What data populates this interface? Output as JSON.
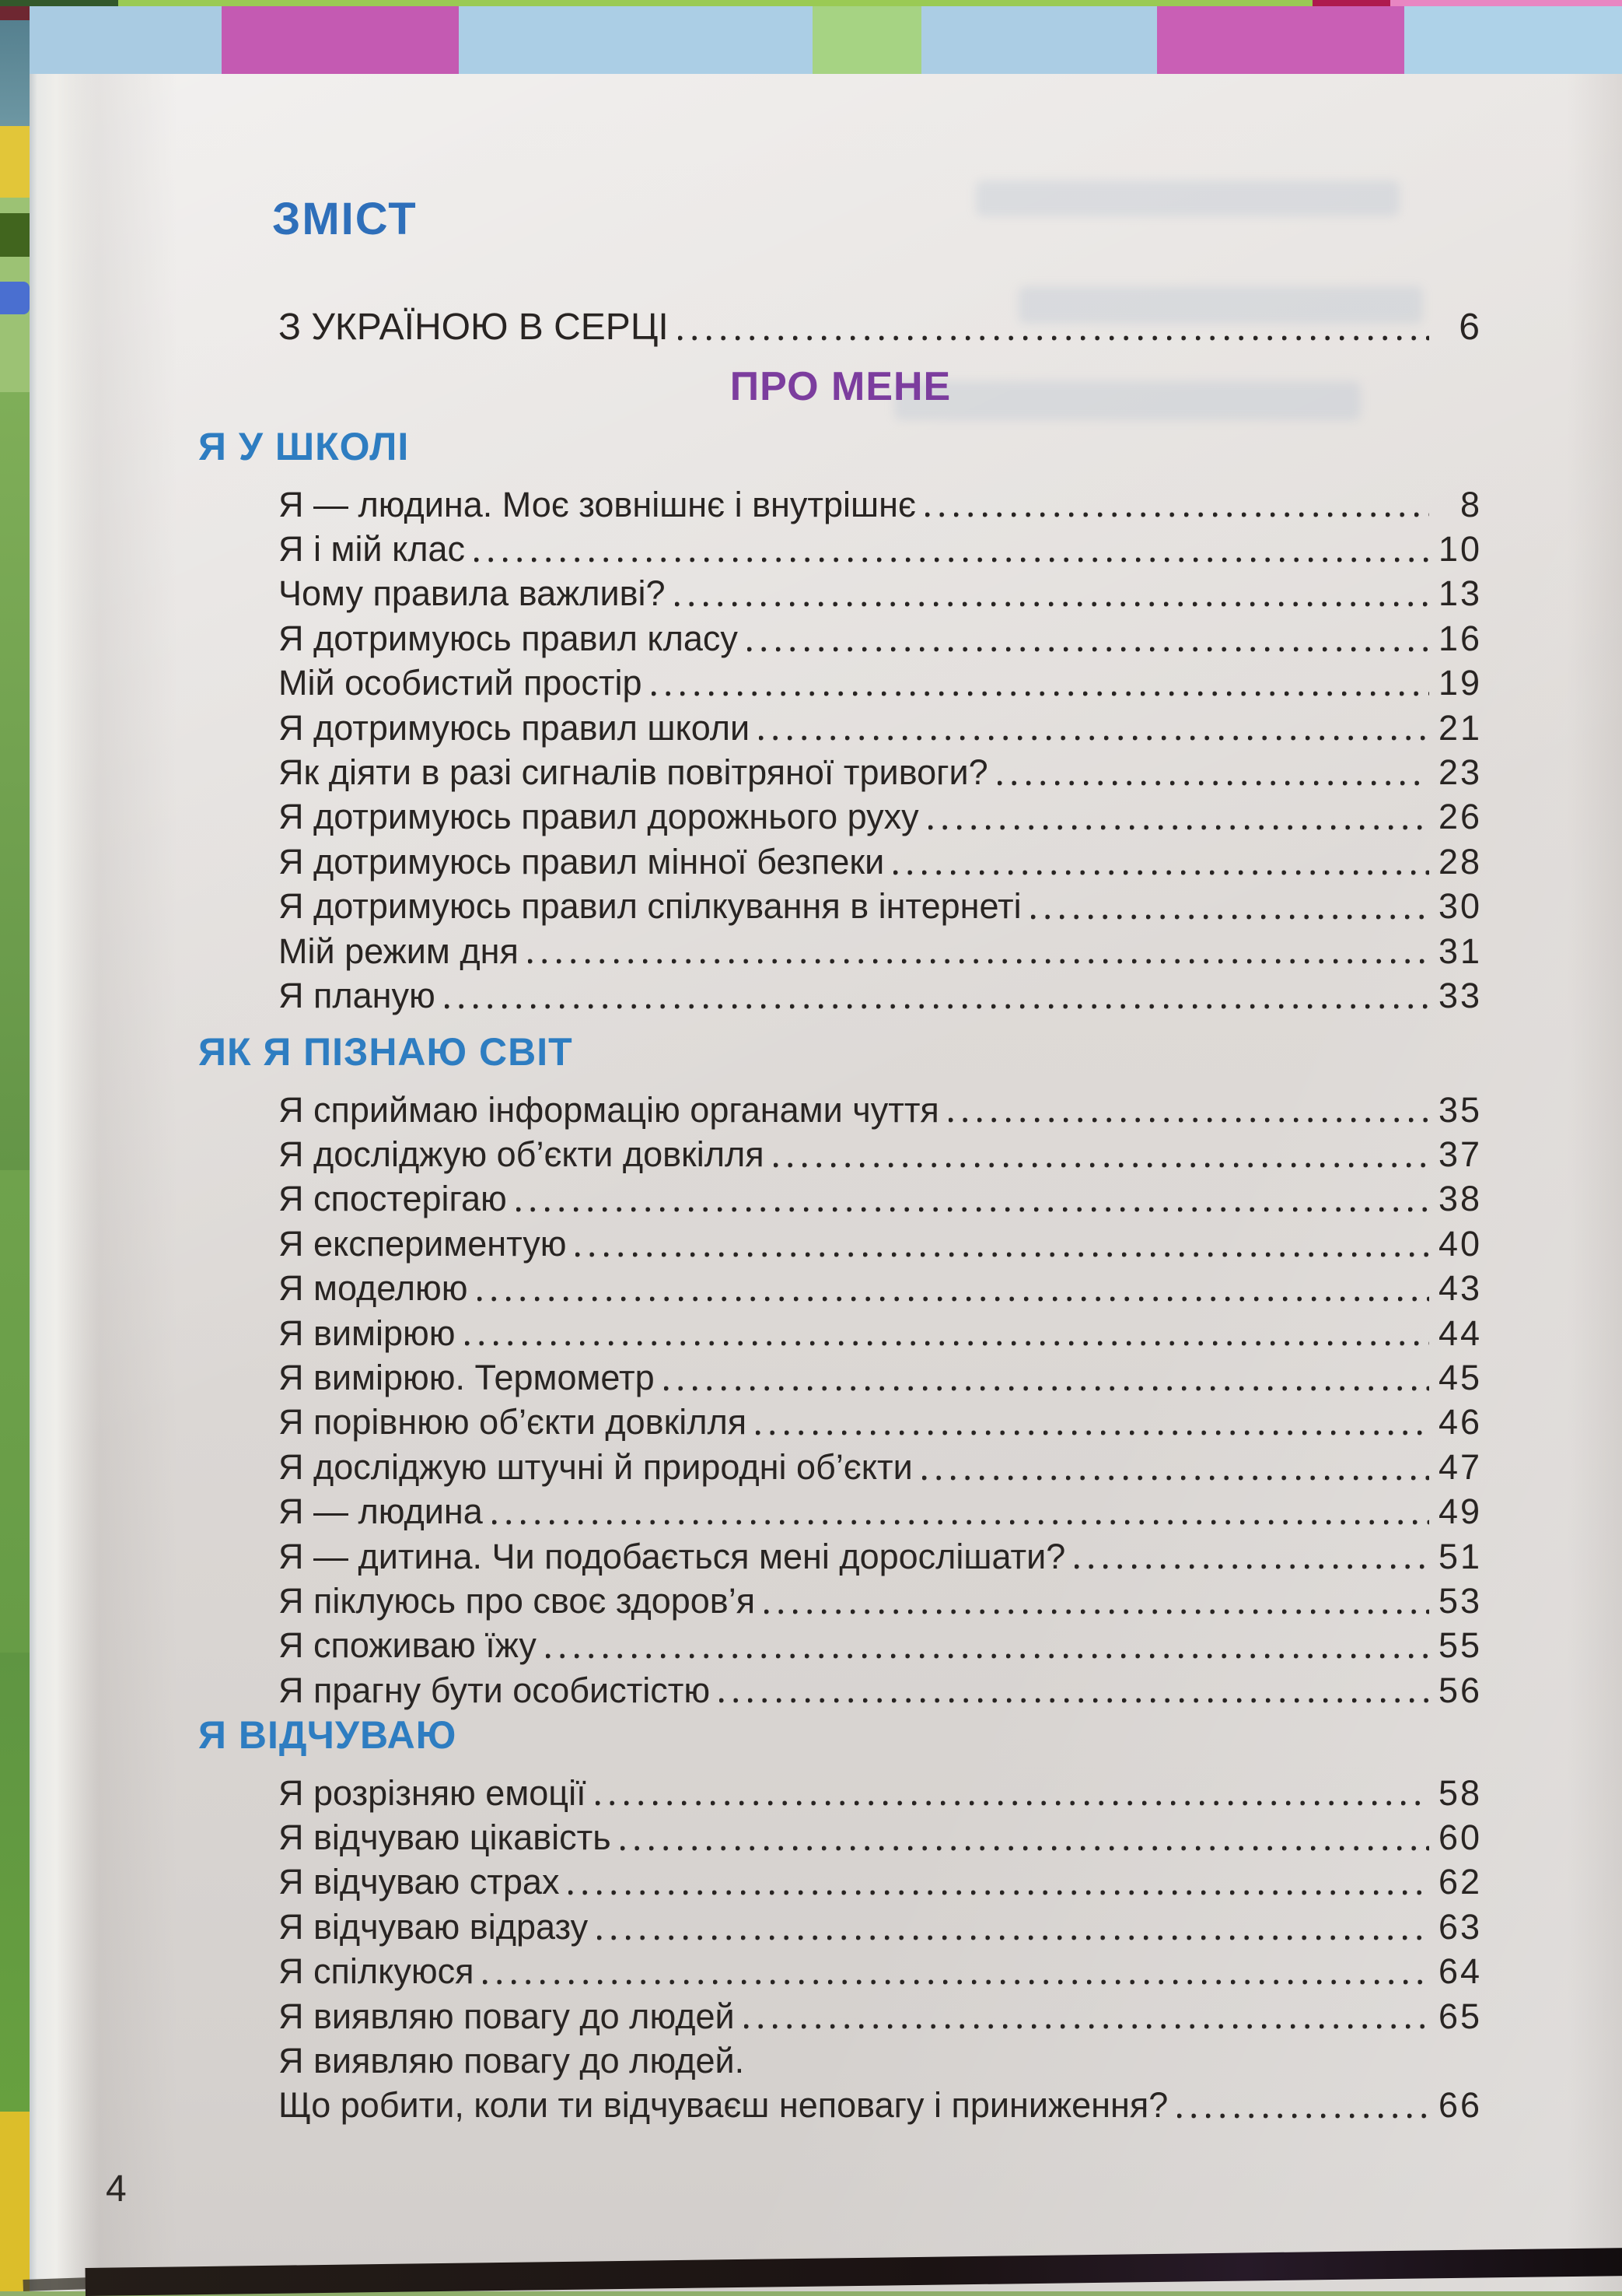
{
  "colors": {
    "title-blue": "#2e6fba",
    "section-blue": "#2e7dc1",
    "part-purple": "#7c3d9e",
    "ink": "#282422"
  },
  "toc": {
    "title": "ЗМІСТ",
    "top_entry": {
      "label": "З УКРАЇНОЮ В СЕРЦІ",
      "page": "6"
    },
    "part_heading": "ПРО МЕНЕ",
    "footer_page_number": "4",
    "sections": [
      {
        "heading": "Я У ШКОЛІ",
        "entries": [
          {
            "label": "Я — людина. Моє зовнішнє і внутрішнє",
            "page": "8"
          },
          {
            "label": "Я і мій клас",
            "page": "10"
          },
          {
            "label": "Чому правила важливі?",
            "page": "13"
          },
          {
            "label": "Я дотримуюсь правил класу",
            "page": "16"
          },
          {
            "label": "Мій особистий простір",
            "page": "19"
          },
          {
            "label": "Я дотримуюсь правил школи",
            "page": "21"
          },
          {
            "label": "Як діяти в разі сигналів повітряної тривоги?",
            "page": "23"
          },
          {
            "label": "Я дотримуюсь правил дорожнього руху",
            "page": "26"
          },
          {
            "label": "Я дотримуюсь правил мінної безпеки",
            "page": "28"
          },
          {
            "label": "Я дотримуюсь правил спілкування в інтернеті",
            "page": "30"
          },
          {
            "label": "Мій режим дня",
            "page": "31"
          },
          {
            "label": "Я планую",
            "page": "33"
          }
        ]
      },
      {
        "heading": "ЯК Я ПІЗНАЮ СВІТ",
        "entries": [
          {
            "label": "Я сприймаю інформацію органами чуття",
            "page": "35"
          },
          {
            "label": "Я досліджую об’єкти довкілля",
            "page": "37"
          },
          {
            "label": "Я спостерігаю",
            "page": "38"
          },
          {
            "label": "Я експериментую",
            "page": "40"
          },
          {
            "label": "Я моделюю",
            "page": "43"
          },
          {
            "label": "Я вимірюю",
            "page": "44"
          },
          {
            "label": "Я вимірюю. Термометр",
            "page": "45"
          },
          {
            "label": "Я порівнюю об’єкти довкілля",
            "page": "46"
          },
          {
            "label": "Я досліджую штучні й природні об’єкти",
            "page": "47"
          },
          {
            "label": "Я — людина",
            "page": "49"
          },
          {
            "label": "Я — дитина. Чи подобається мені дорослішати?",
            "page": "51"
          },
          {
            "label": "Я піклуюсь про своє здоров’я",
            "page": "53"
          },
          {
            "label": "Я споживаю їжу",
            "page": "55"
          },
          {
            "label": "Я прагну бути особистістю",
            "page": "56"
          }
        ]
      },
      {
        "heading": "Я ВІДЧУВАЮ",
        "entries": [
          {
            "label": "Я розрізняю емоції",
            "page": "58"
          },
          {
            "label": "Я відчуваю цікавість",
            "page": "60"
          },
          {
            "label": "Я відчуваю страх",
            "page": "62"
          },
          {
            "label": "Я відчуваю відразу",
            "page": "63"
          },
          {
            "label": "Я спілкуюся",
            "page": "64"
          },
          {
            "label": "Я виявляю повагу до людей",
            "page": "65"
          },
          {
            "label": "Я виявляю повагу до людей.",
            "label2": "Що робити, коли ти відчуваєш неповагу і приниження?",
            "page": "66"
          }
        ]
      }
    ]
  }
}
